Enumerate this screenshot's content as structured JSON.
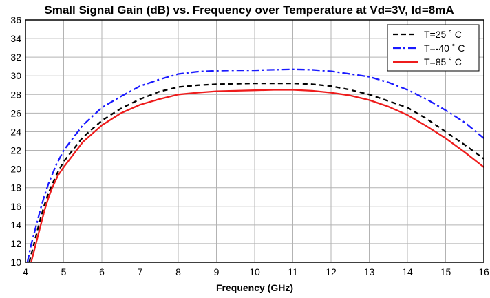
{
  "chart_data": {
    "type": "line",
    "title": "Small Signal Gain (dB) vs. Frequency over Temperature at Vd=3V, Id=8mA",
    "xlabel": "Frequency (GHz)",
    "ylabel": "",
    "xlim": [
      4,
      16
    ],
    "ylim": [
      10,
      36
    ],
    "xticks": [
      "4",
      "5",
      "6",
      "7",
      "8",
      "9",
      "10",
      "11",
      "12",
      "13",
      "14",
      "15",
      "16"
    ],
    "yticks": [
      "10",
      "12",
      "14",
      "16",
      "18",
      "20",
      "22",
      "24",
      "26",
      "28",
      "30",
      "32",
      "34",
      "36"
    ],
    "grid": true,
    "legend_position": "top-right",
    "series": [
      {
        "name": "T=25 ˚ C",
        "color": "#000000",
        "dash": "dashed",
        "x": [
          4.1,
          4.2,
          4.3,
          4.4,
          4.5,
          4.6,
          4.8,
          5.0,
          5.5,
          6.0,
          6.5,
          7.0,
          7.5,
          8.0,
          8.5,
          9.0,
          9.5,
          10.0,
          10.5,
          11.0,
          11.5,
          12.0,
          12.5,
          13.0,
          13.5,
          14.0,
          14.5,
          15.0,
          15.5,
          16.0
        ],
        "y": [
          10.0,
          11.6,
          13.2,
          14.8,
          16.2,
          17.4,
          19.3,
          20.8,
          23.4,
          25.2,
          26.5,
          27.5,
          28.3,
          28.8,
          29.0,
          29.1,
          29.15,
          29.2,
          29.2,
          29.2,
          29.1,
          28.9,
          28.5,
          28.0,
          27.3,
          26.6,
          25.4,
          24.0,
          22.6,
          21.1
        ]
      },
      {
        "name": "T=-40 ˚ C",
        "color": "#1a1aff",
        "dash": "dashdot",
        "x": [
          4.05,
          4.15,
          4.3,
          4.4,
          4.5,
          4.6,
          4.8,
          5.0,
          5.5,
          6.0,
          6.5,
          7.0,
          7.5,
          8.0,
          8.5,
          9.0,
          9.5,
          10.0,
          10.5,
          11.0,
          11.5,
          12.0,
          12.5,
          13.0,
          13.5,
          14.0,
          14.5,
          15.0,
          15.5,
          16.0
        ],
        "y": [
          10.0,
          11.9,
          14.2,
          15.8,
          17.2,
          18.4,
          20.4,
          22.0,
          24.7,
          26.6,
          27.8,
          28.9,
          29.6,
          30.2,
          30.45,
          30.55,
          30.6,
          30.6,
          30.65,
          30.7,
          30.65,
          30.5,
          30.2,
          29.9,
          29.3,
          28.5,
          27.5,
          26.3,
          25.0,
          23.3
        ]
      },
      {
        "name": "T=85 ˚ C",
        "color": "#ee1c1c",
        "dash": "solid",
        "x": [
          4.15,
          4.3,
          4.4,
          4.5,
          4.6,
          4.7,
          4.85,
          5.0,
          5.5,
          6.0,
          6.5,
          7.0,
          7.5,
          8.0,
          8.5,
          9.0,
          9.5,
          10.0,
          10.5,
          11.0,
          11.5,
          12.0,
          12.5,
          13.0,
          13.5,
          14.0,
          14.5,
          15.0,
          15.5,
          16.0
        ],
        "y": [
          10.0,
          12.4,
          14.0,
          15.6,
          16.9,
          18.0,
          19.3,
          20.2,
          22.9,
          24.7,
          26.0,
          26.9,
          27.5,
          28.0,
          28.2,
          28.35,
          28.4,
          28.45,
          28.5,
          28.5,
          28.4,
          28.2,
          27.9,
          27.4,
          26.7,
          25.8,
          24.6,
          23.3,
          21.8,
          20.2
        ]
      }
    ]
  }
}
